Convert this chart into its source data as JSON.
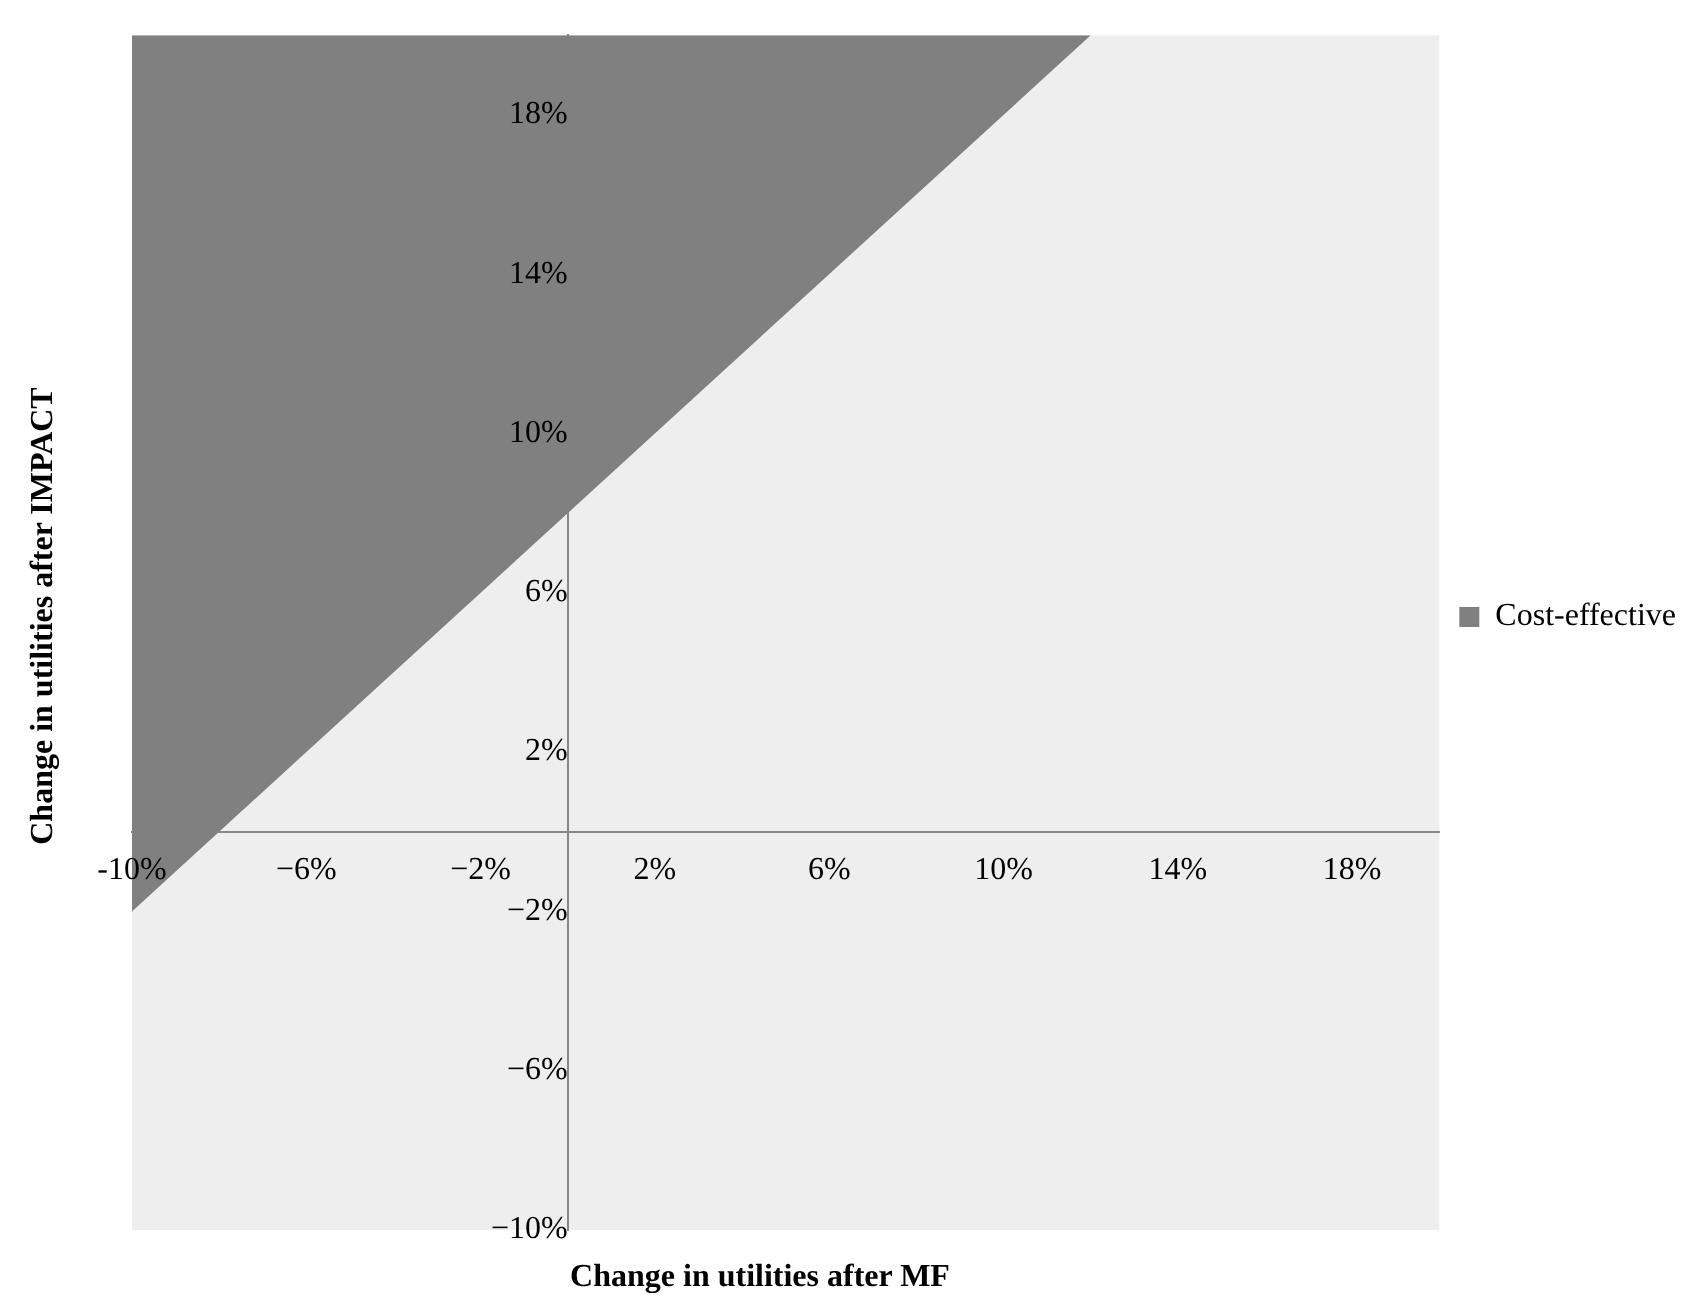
{
  "chart_data": {
    "type": "area",
    "xlabel": "Change in utilities after MF",
    "ylabel": "Change in utilities after IMPACT",
    "x": [
      -10,
      12
    ],
    "series": [
      {
        "name": "Cost-effective",
        "color": "#808080",
        "values": [
          -2,
          20
        ]
      }
    ],
    "xlim": [
      -10,
      20
    ],
    "ylim": [
      -10,
      20
    ],
    "xticks": [
      {
        "value": -10,
        "label": "-10%"
      },
      {
        "value": -6,
        "label": "−6%"
      },
      {
        "value": -2,
        "label": "−2%"
      },
      {
        "value": 2,
        "label": "2%"
      },
      {
        "value": 6,
        "label": "6%"
      },
      {
        "value": 10,
        "label": "10%"
      },
      {
        "value": 14,
        "label": "14%"
      },
      {
        "value": 18,
        "label": "18%"
      }
    ],
    "yticks": [
      {
        "value": -10,
        "label": "−10%"
      },
      {
        "value": -6,
        "label": "−6%"
      },
      {
        "value": -2,
        "label": "−2%"
      },
      {
        "value": 2,
        "label": "2%"
      },
      {
        "value": 6,
        "label": "6%"
      },
      {
        "value": 10,
        "label": "10%"
      },
      {
        "value": 14,
        "label": "14%"
      },
      {
        "value": 18,
        "label": "18%"
      }
    ],
    "grid": false,
    "legend": "right"
  }
}
